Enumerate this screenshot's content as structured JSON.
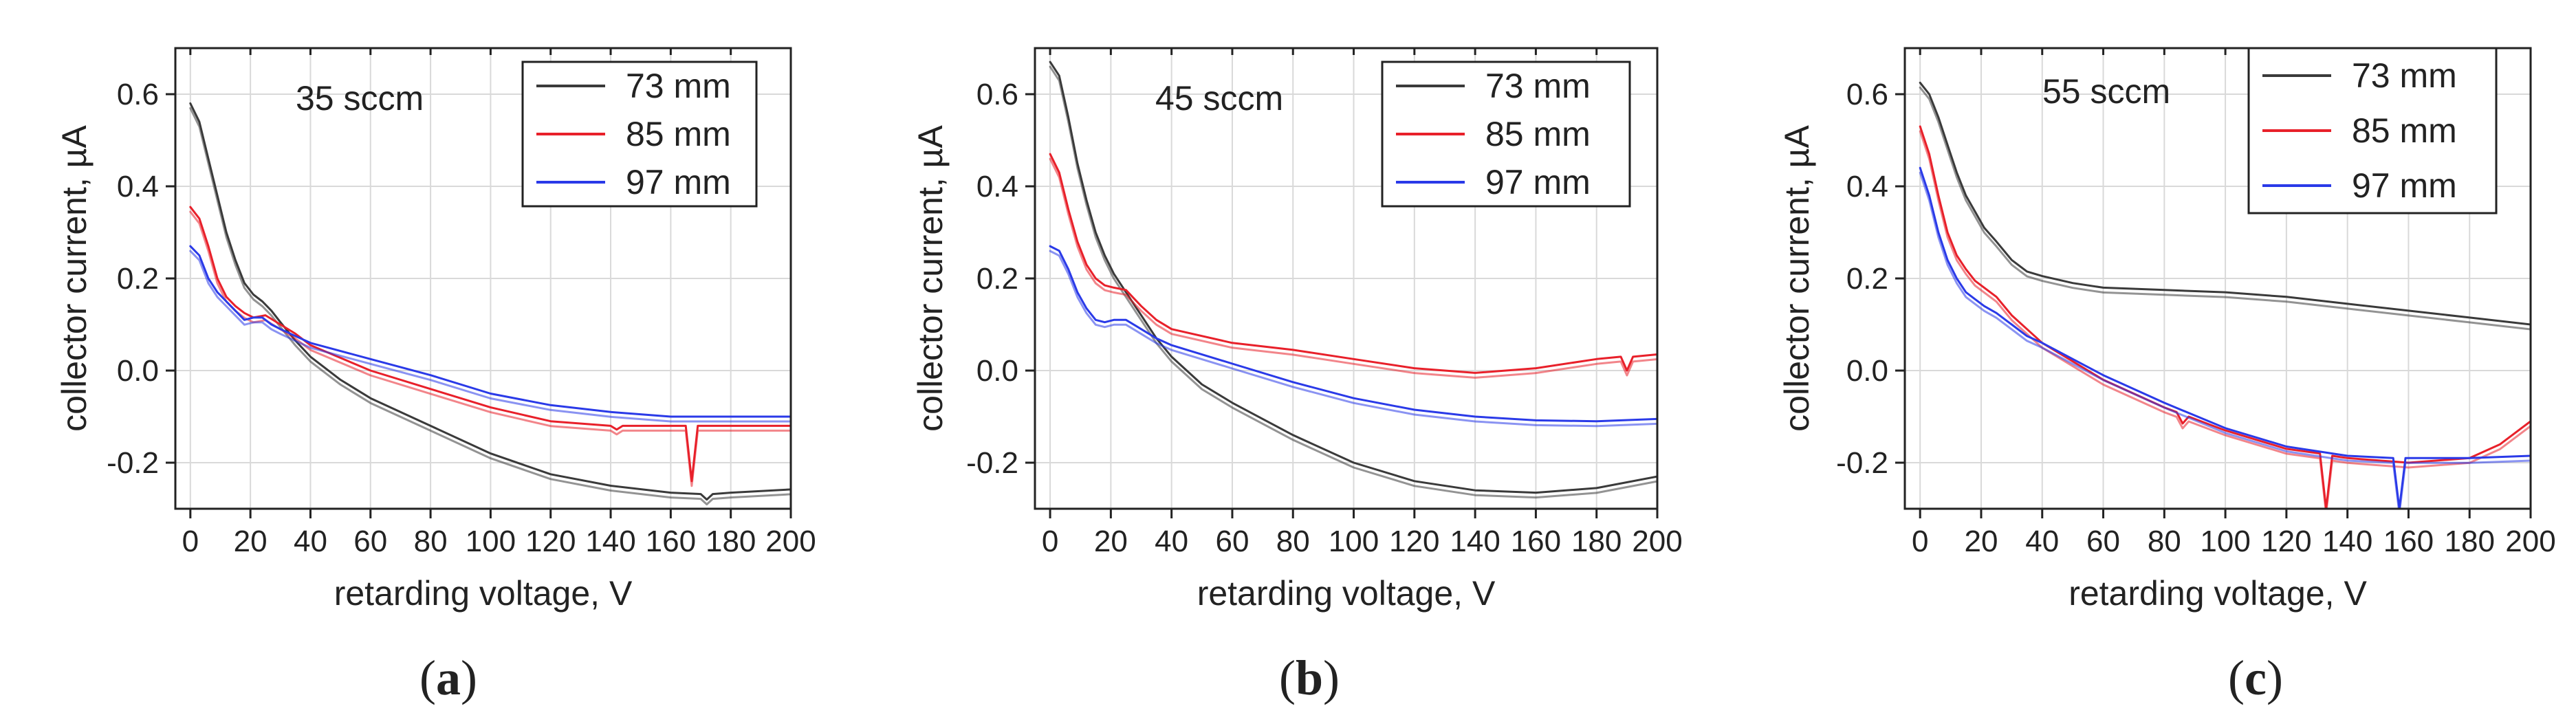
{
  "chart_data": [
    {
      "type": "line",
      "panel_label": "a",
      "annotation": "35 sccm",
      "xlabel": "retarding voltage, V",
      "ylabel": "collector current, µA",
      "xlim": [
        -5,
        200
      ],
      "ylim": [
        -0.3,
        0.7
      ],
      "xticks": [
        0,
        20,
        40,
        60,
        80,
        100,
        120,
        140,
        160,
        180,
        200
      ],
      "yticks": [
        -0.2,
        0.0,
        0.2,
        0.4,
        0.6
      ],
      "ytick_labels": [
        "-0.2",
        "0.0",
        "0.2",
        "0.4",
        "0.6"
      ],
      "grid": true,
      "legend_position": "top-right",
      "series": [
        {
          "name": "73 mm",
          "color": "#3a3a3a",
          "x": [
            0,
            3,
            6,
            9,
            12,
            15,
            18,
            21,
            24,
            27,
            30,
            35,
            40,
            50,
            60,
            80,
            100,
            120,
            140,
            160,
            170,
            172,
            174,
            180,
            200
          ],
          "y": [
            0.58,
            0.54,
            0.46,
            0.38,
            0.3,
            0.24,
            0.19,
            0.165,
            0.15,
            0.13,
            0.105,
            0.065,
            0.03,
            -0.02,
            -0.06,
            -0.12,
            -0.18,
            -0.225,
            -0.25,
            -0.265,
            -0.268,
            -0.28,
            -0.268,
            -0.265,
            -0.258
          ]
        },
        {
          "name": "85 mm",
          "color": "#e8202a",
          "x": [
            0,
            3,
            6,
            9,
            12,
            15,
            18,
            21,
            25,
            30,
            35,
            40,
            60,
            80,
            100,
            120,
            140,
            142,
            144,
            160,
            165,
            167,
            169,
            180,
            200
          ],
          "y": [
            0.355,
            0.33,
            0.27,
            0.2,
            0.16,
            0.14,
            0.125,
            0.115,
            0.12,
            0.1,
            0.08,
            0.055,
            0.0,
            -0.04,
            -0.08,
            -0.11,
            -0.12,
            -0.128,
            -0.12,
            -0.12,
            -0.12,
            -0.24,
            -0.12,
            -0.12,
            -0.12
          ]
        },
        {
          "name": "97 mm",
          "color": "#2a3ae8",
          "x": [
            0,
            3,
            6,
            9,
            12,
            15,
            18,
            21,
            24,
            27,
            30,
            35,
            40,
            60,
            80,
            100,
            120,
            140,
            160,
            180,
            200
          ],
          "y": [
            0.27,
            0.25,
            0.2,
            0.17,
            0.15,
            0.13,
            0.11,
            0.115,
            0.115,
            0.1,
            0.09,
            0.075,
            0.06,
            0.025,
            -0.01,
            -0.05,
            -0.075,
            -0.09,
            -0.1,
            -0.1,
            -0.1
          ]
        }
      ]
    },
    {
      "type": "line",
      "panel_label": "b",
      "annotation": "45 sccm",
      "xlabel": "retarding voltage, V",
      "ylabel": "collector current, µA",
      "xlim": [
        -5,
        200
      ],
      "ylim": [
        -0.3,
        0.7
      ],
      "xticks": [
        0,
        20,
        40,
        60,
        80,
        100,
        120,
        140,
        160,
        180,
        200
      ],
      "yticks": [
        -0.2,
        0.0,
        0.2,
        0.4,
        0.6
      ],
      "ytick_labels": [
        "-0.2",
        "0.0",
        "0.2",
        "0.4",
        "0.6"
      ],
      "grid": true,
      "legend_position": "top-right",
      "series": [
        {
          "name": "73 mm",
          "color": "#3a3a3a",
          "x": [
            0,
            3,
            6,
            9,
            12,
            15,
            18,
            21,
            25,
            30,
            35,
            40,
            50,
            60,
            80,
            100,
            120,
            140,
            160,
            180,
            200
          ],
          "y": [
            0.67,
            0.64,
            0.55,
            0.45,
            0.37,
            0.3,
            0.25,
            0.21,
            0.17,
            0.12,
            0.07,
            0.03,
            -0.03,
            -0.07,
            -0.14,
            -0.2,
            -0.24,
            -0.26,
            -0.265,
            -0.255,
            -0.23
          ]
        },
        {
          "name": "85 mm",
          "color": "#e8202a",
          "x": [
            0,
            3,
            6,
            9,
            12,
            15,
            18,
            21,
            25,
            30,
            35,
            40,
            60,
            80,
            100,
            120,
            140,
            160,
            180,
            188,
            190,
            192,
            200
          ],
          "y": [
            0.47,
            0.43,
            0.35,
            0.28,
            0.23,
            0.2,
            0.185,
            0.18,
            0.175,
            0.14,
            0.11,
            0.09,
            0.06,
            0.045,
            0.025,
            0.005,
            -0.005,
            0.005,
            0.025,
            0.03,
            0.0,
            0.03,
            0.035
          ]
        },
        {
          "name": "97 mm",
          "color": "#2a3ae8",
          "x": [
            0,
            3,
            6,
            9,
            12,
            15,
            18,
            21,
            25,
            30,
            35,
            40,
            60,
            80,
            100,
            120,
            140,
            160,
            180,
            200
          ],
          "y": [
            0.27,
            0.26,
            0.22,
            0.17,
            0.135,
            0.11,
            0.105,
            0.11,
            0.11,
            0.09,
            0.07,
            0.055,
            0.015,
            -0.025,
            -0.06,
            -0.085,
            -0.1,
            -0.108,
            -0.11,
            -0.105
          ]
        }
      ]
    },
    {
      "type": "line",
      "panel_label": "c",
      "annotation": "55 sccm",
      "xlabel": "retarding voltage, V",
      "ylabel": "collector current, µA",
      "xlim": [
        -5,
        200
      ],
      "ylim": [
        -0.3,
        0.7
      ],
      "xticks": [
        0,
        20,
        40,
        60,
        80,
        100,
        120,
        140,
        160,
        180,
        200
      ],
      "yticks": [
        -0.2,
        0.0,
        0.2,
        0.4,
        0.6
      ],
      "ytick_labels": [
        "-0.2",
        "0.0",
        "0.2",
        "0.4",
        "0.6"
      ],
      "grid": true,
      "legend_position": "top-right",
      "series": [
        {
          "name": "73 mm",
          "color": "#3a3a3a",
          "x": [
            0,
            3,
            6,
            9,
            12,
            15,
            18,
            21,
            25,
            30,
            35,
            40,
            50,
            60,
            80,
            100,
            120,
            140,
            160,
            180,
            200
          ],
          "y": [
            0.625,
            0.6,
            0.55,
            0.49,
            0.43,
            0.38,
            0.345,
            0.31,
            0.28,
            0.24,
            0.215,
            0.205,
            0.19,
            0.18,
            0.175,
            0.17,
            0.16,
            0.145,
            0.13,
            0.115,
            0.1
          ]
        },
        {
          "name": "85 mm",
          "color": "#e8202a",
          "x": [
            0,
            3,
            6,
            9,
            12,
            15,
            18,
            21,
            25,
            30,
            35,
            40,
            60,
            80,
            84,
            86,
            88,
            100,
            120,
            131,
            133,
            135,
            140,
            160,
            180,
            190,
            200
          ],
          "y": [
            0.53,
            0.47,
            0.38,
            0.3,
            0.25,
            0.22,
            0.195,
            0.18,
            0.16,
            0.12,
            0.09,
            0.06,
            -0.02,
            -0.08,
            -0.09,
            -0.115,
            -0.1,
            -0.13,
            -0.17,
            -0.18,
            -0.3,
            -0.185,
            -0.19,
            -0.2,
            -0.19,
            -0.16,
            -0.11
          ]
        },
        {
          "name": "97 mm",
          "color": "#2a3ae8",
          "x": [
            0,
            3,
            6,
            9,
            12,
            15,
            18,
            21,
            25,
            30,
            35,
            40,
            60,
            80,
            100,
            120,
            140,
            155,
            157,
            159,
            160,
            180,
            200
          ],
          "y": [
            0.44,
            0.38,
            0.3,
            0.24,
            0.2,
            0.17,
            0.155,
            0.14,
            0.125,
            0.1,
            0.075,
            0.06,
            -0.01,
            -0.07,
            -0.125,
            -0.165,
            -0.185,
            -0.19,
            -0.3,
            -0.19,
            -0.19,
            -0.19,
            -0.185
          ]
        }
      ]
    }
  ]
}
